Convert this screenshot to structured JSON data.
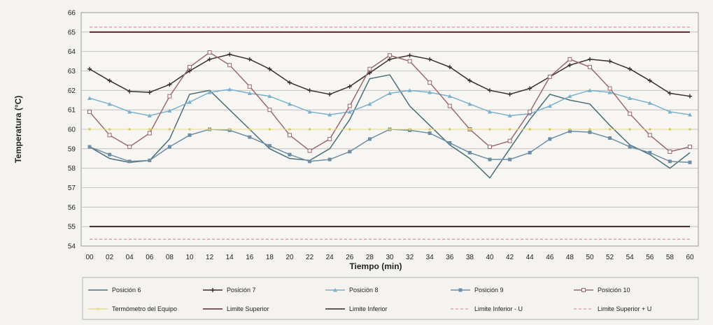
{
  "chart_data": {
    "type": "line",
    "xlabel": "Tiempo (min)",
    "ylabel": "Temperatura (°C)",
    "ylim": [
      54,
      66
    ],
    "yticks": [
      54,
      55,
      56,
      57,
      58,
      59,
      60,
      61,
      62,
      63,
      64,
      65,
      66
    ],
    "categories": [
      "00",
      "02",
      "04",
      "06",
      "08",
      "10",
      "12",
      "14",
      "16",
      "18",
      "20",
      "22",
      "24",
      "26",
      "28",
      "30",
      "32",
      "34",
      "36",
      "38",
      "40",
      "42",
      "44",
      "46",
      "48",
      "50",
      "52",
      "54",
      "56",
      "58",
      "60"
    ],
    "grid": true,
    "legend_position": "bottom",
    "series": [
      {
        "name": "Posición 6",
        "color": "#4a6f78",
        "marker": "none",
        "values": [
          59.1,
          58.5,
          58.3,
          58.4,
          59.5,
          61.8,
          62.0,
          61.0,
          60.0,
          59.0,
          58.5,
          58.4,
          59.0,
          60.5,
          62.6,
          62.8,
          61.2,
          60.2,
          59.2,
          58.5,
          57.5,
          59.0,
          60.5,
          61.8,
          61.5,
          61.3,
          60.2,
          59.2,
          58.7,
          58.0,
          58.8
        ]
      },
      {
        "name": "Posición 7",
        "color": "#3a2d2a",
        "marker": "cross",
        "values": [
          63.1,
          62.5,
          61.95,
          61.9,
          62.3,
          63.0,
          63.6,
          63.85,
          63.6,
          63.1,
          62.4,
          62.0,
          61.8,
          62.2,
          62.9,
          63.6,
          63.8,
          63.6,
          63.2,
          62.5,
          62.0,
          61.8,
          62.1,
          62.7,
          63.3,
          63.6,
          63.5,
          63.1,
          62.5,
          61.85,
          61.7
        ]
      },
      {
        "name": "Posición 8",
        "color": "#7bb0cc",
        "marker": "triangle",
        "values": [
          61.6,
          61.3,
          60.9,
          60.7,
          60.95,
          61.4,
          61.9,
          62.05,
          61.85,
          61.7,
          61.3,
          60.9,
          60.75,
          60.9,
          61.3,
          61.85,
          62.0,
          61.9,
          61.7,
          61.3,
          60.9,
          60.7,
          60.8,
          61.2,
          61.7,
          62.0,
          61.9,
          61.6,
          61.35,
          60.9,
          60.75
        ]
      },
      {
        "name": "Posición 9",
        "color": "#6e8ea6",
        "marker": "square",
        "values": [
          59.1,
          58.7,
          58.35,
          58.4,
          59.1,
          59.7,
          60.0,
          59.95,
          59.6,
          59.15,
          58.7,
          58.35,
          58.45,
          58.85,
          59.5,
          60.0,
          59.95,
          59.8,
          59.3,
          58.8,
          58.45,
          58.45,
          58.8,
          59.5,
          59.9,
          59.85,
          59.55,
          59.1,
          58.8,
          58.35,
          58.3
        ]
      },
      {
        "name": "Posición 10",
        "color": "#9a6a70",
        "marker": "square-open",
        "values": [
          60.9,
          59.7,
          59.1,
          59.8,
          61.7,
          63.2,
          63.95,
          63.3,
          62.2,
          61.0,
          59.7,
          58.9,
          59.5,
          61.2,
          63.1,
          63.8,
          63.5,
          62.4,
          61.2,
          60.0,
          59.1,
          59.4,
          60.9,
          62.7,
          63.6,
          63.2,
          62.1,
          60.8,
          59.7,
          58.85,
          59.1
        ]
      },
      {
        "name": "Termómetro del Equipo",
        "color": "#e6dc8a",
        "marker": "dot",
        "constant": 60
      },
      {
        "name": "Limite Superior",
        "color": "#5a2a2e",
        "dash": "none",
        "constant": 65
      },
      {
        "name": "Limite Inferior",
        "color": "#3d2525",
        "dash": "none",
        "constant": 55
      },
      {
        "name": "Limite Inferior - U",
        "color": "#e07a86",
        "dash": "4,3",
        "constant": 54.35
      },
      {
        "name": "Limite Superior + U",
        "color": "#e07a86",
        "dash": "4,3",
        "constant": 65.25
      }
    ]
  }
}
